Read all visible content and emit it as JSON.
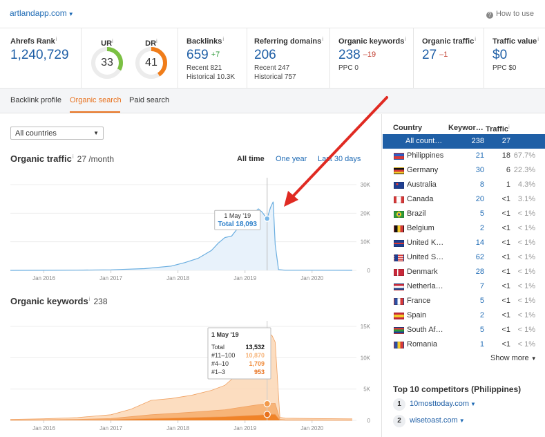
{
  "header": {
    "site": "artlandapp.com",
    "how_to_use": "How to use"
  },
  "metrics": {
    "ahrefs_rank": {
      "label": "Ahrefs Rank",
      "value": "1,240,729"
    },
    "ur": {
      "label": "UR",
      "value": "33",
      "fraction": 0.33,
      "color": "#7bc043"
    },
    "dr": {
      "label": "DR",
      "value": "41",
      "fraction": 0.41,
      "color": "#f07d1a"
    },
    "backlinks": {
      "label": "Backlinks",
      "value": "659",
      "delta": "+7",
      "recent": "Recent 821",
      "historical": "Historical 10.3K"
    },
    "referring_domains": {
      "label": "Referring domains",
      "value": "206",
      "recent": "Recent 247",
      "historical": "Historical 757"
    },
    "organic_keywords": {
      "label": "Organic keywords",
      "value": "238",
      "delta": "–19",
      "ppc": "PPC 0"
    },
    "organic_traffic": {
      "label": "Organic traffic",
      "value": "27",
      "delta": "–1"
    },
    "traffic_value": {
      "label": "Traffic value",
      "value": "$0",
      "ppc": "PPC $0"
    }
  },
  "tabs": [
    "Backlink profile",
    "Organic search",
    "Paid search"
  ],
  "active_tab": "Organic search",
  "country_select": "All countries",
  "traffic_section": {
    "title": "Organic traffic",
    "value": "27 /month",
    "ranges": [
      "All time",
      "One year",
      "Last 30 days"
    ],
    "active_range": "All time",
    "tooltip": {
      "date": "1 May '19",
      "total": "Total 18,093"
    }
  },
  "keywords_section": {
    "title": "Organic keywords",
    "value": "238",
    "tooltip": {
      "date": "1 May '19",
      "rows": [
        {
          "label": "Total",
          "value": "13,532"
        },
        {
          "label": "#11–100",
          "value": "10,870"
        },
        {
          "label": "#4–10",
          "value": "1,709"
        },
        {
          "label": "#1–3",
          "value": "953"
        }
      ]
    }
  },
  "chart_data": [
    {
      "type": "area",
      "x_ticks": [
        "Jan 2016",
        "Jan 2017",
        "Jan 2018",
        "Jan 2019",
        "Jan 2020"
      ],
      "y_ticks": [
        "0",
        "10K",
        "20K",
        "30K"
      ],
      "ylim": [
        0,
        30000
      ],
      "xlim": [
        2015.5,
        2020.6
      ],
      "grid": true,
      "color": "#6aaee0",
      "series": [
        {
          "x": [
            2015.5,
            2016.0,
            2016.5,
            2017.0,
            2017.5,
            2017.9,
            2018.1,
            2018.3,
            2018.5,
            2018.6,
            2018.7,
            2018.8,
            2018.9,
            2019.0,
            2019.1,
            2019.2,
            2019.25,
            2019.33,
            2019.38,
            2019.42,
            2019.45,
            2019.5,
            2019.6,
            2020.0,
            2020.6
          ],
          "y": [
            0,
            30,
            80,
            200,
            600,
            1500,
            2700,
            4200,
            7000,
            9500,
            11500,
            12000,
            15000,
            17000,
            19500,
            21500,
            20500,
            18093,
            22000,
            24000,
            9000,
            300,
            60,
            40,
            27
          ]
        }
      ],
      "marker": {
        "x": 2019.33,
        "y": 18093
      }
    },
    {
      "type": "area",
      "x_ticks": [
        "Jan 2016",
        "Jan 2017",
        "Jan 2018",
        "Jan 2019",
        "Jan 2020"
      ],
      "y_ticks": [
        "0",
        "5K",
        "10K",
        "15K"
      ],
      "ylim": [
        0,
        15000
      ],
      "xlim": [
        2015.5,
        2020.6
      ],
      "grid": true,
      "series": [
        {
          "name": "#11–100",
          "color": "#fbd7b5",
          "x": [
            2015.5,
            2016.0,
            2016.5,
            2017.0,
            2017.3,
            2017.6,
            2017.9,
            2018.2,
            2018.5,
            2018.7,
            2018.9,
            2019.05,
            2019.15,
            2019.25,
            2019.33,
            2019.4,
            2019.45,
            2019.52,
            2019.6,
            2020.0,
            2020.6
          ],
          "y": [
            150,
            250,
            450,
            900,
            1800,
            3200,
            3500,
            4000,
            4800,
            5600,
            7500,
            12000,
            12600,
            13000,
            13532,
            13600,
            12500,
            500,
            350,
            300,
            238
          ]
        },
        {
          "name": "#4–10",
          "color": "#f6ad6b",
          "x": [
            2015.5,
            2016.5,
            2017.0,
            2017.6,
            2018.2,
            2018.7,
            2019.0,
            2019.2,
            2019.33,
            2019.45,
            2019.52,
            2019.6,
            2020.6
          ],
          "y": [
            50,
            150,
            300,
            900,
            1300,
            1700,
            2200,
            2500,
            2662,
            2700,
            150,
            90,
            70
          ]
        },
        {
          "name": "#1–3",
          "color": "#ee7a1a",
          "x": [
            2015.5,
            2016.5,
            2017.0,
            2017.6,
            2018.2,
            2018.7,
            2019.0,
            2019.2,
            2019.33,
            2019.45,
            2019.52,
            2019.6,
            2020.6
          ],
          "y": [
            20,
            60,
            120,
            300,
            450,
            600,
            750,
            850,
            953,
            980,
            50,
            30,
            25
          ]
        }
      ],
      "markers": [
        {
          "x": 2019.33,
          "y": 13532
        },
        {
          "x": 2019.33,
          "y": 2662
        },
        {
          "x": 2019.33,
          "y": 953
        }
      ]
    }
  ],
  "countries": {
    "headers": [
      "Country",
      "Keywor…",
      "Traffic"
    ],
    "rows": [
      {
        "name": "All count…",
        "keywords": "238",
        "traffic": "27",
        "pct": "",
        "flag": "",
        "selected": true
      },
      {
        "name": "Philippines",
        "keywords": "21",
        "traffic": "18",
        "pct": "67.7%",
        "flag": "ph"
      },
      {
        "name": "Germany",
        "keywords": "30",
        "traffic": "6",
        "pct": "22.3%",
        "flag": "de"
      },
      {
        "name": "Australia",
        "keywords": "8",
        "traffic": "1",
        "pct": "4.3%",
        "flag": "au"
      },
      {
        "name": "Canada",
        "keywords": "20",
        "traffic": "<1",
        "pct": "3.1%",
        "flag": "ca"
      },
      {
        "name": "Brazil",
        "keywords": "5",
        "traffic": "<1",
        "pct": "< 1%",
        "flag": "br"
      },
      {
        "name": "Belgium",
        "keywords": "2",
        "traffic": "<1",
        "pct": "< 1%",
        "flag": "be"
      },
      {
        "name": "United K…",
        "keywords": "14",
        "traffic": "<1",
        "pct": "< 1%",
        "flag": "gb"
      },
      {
        "name": "United S…",
        "keywords": "62",
        "traffic": "<1",
        "pct": "< 1%",
        "flag": "us"
      },
      {
        "name": "Denmark",
        "keywords": "28",
        "traffic": "<1",
        "pct": "< 1%",
        "flag": "dk"
      },
      {
        "name": "Netherla…",
        "keywords": "7",
        "traffic": "<1",
        "pct": "< 1%",
        "flag": "nl"
      },
      {
        "name": "France",
        "keywords": "5",
        "traffic": "<1",
        "pct": "< 1%",
        "flag": "fr"
      },
      {
        "name": "Spain",
        "keywords": "2",
        "traffic": "<1",
        "pct": "< 1%",
        "flag": "es"
      },
      {
        "name": "South Af…",
        "keywords": "5",
        "traffic": "<1",
        "pct": "< 1%",
        "flag": "za"
      },
      {
        "name": "Romania",
        "keywords": "1",
        "traffic": "<1",
        "pct": "< 1%",
        "flag": "ro"
      }
    ],
    "show_more": "Show more"
  },
  "competitors": {
    "title": "Top 10 competitors (Philippines)",
    "rows": [
      {
        "rank": "1",
        "site": "10mosttoday.com"
      },
      {
        "rank": "2",
        "site": "wisetoast.com"
      }
    ]
  },
  "annotation": {
    "arrow_color": "#e02a22"
  }
}
